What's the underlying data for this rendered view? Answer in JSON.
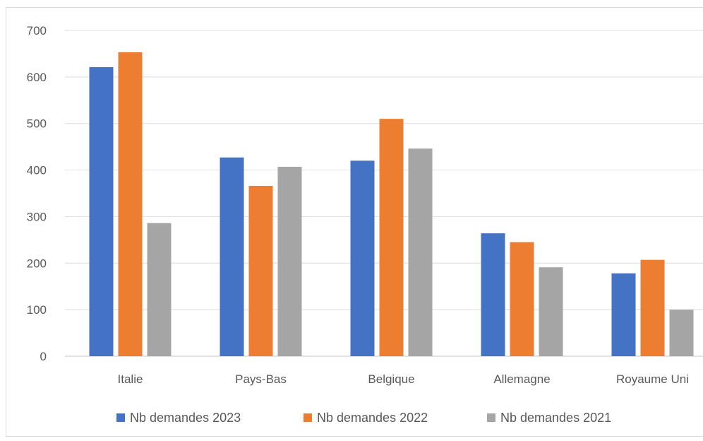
{
  "chart_data": {
    "type": "bar",
    "categories": [
      "Italie",
      "Pays-Bas",
      "Belgique",
      "Allemagne",
      "Royaume Uni"
    ],
    "series": [
      {
        "name": "Nb demandes 2023",
        "values": [
          621,
          427,
          420,
          264,
          178
        ],
        "color": "#4472C4"
      },
      {
        "name": "Nb demandes 2022",
        "values": [
          653,
          366,
          510,
          245,
          207
        ],
        "color": "#ED7D31"
      },
      {
        "name": "Nb demandes 2021",
        "values": [
          286,
          407,
          446,
          191,
          100
        ],
        "color": "#A5A5A5"
      }
    ],
    "title": "",
    "xlabel": "",
    "ylabel": "",
    "ylim": [
      0,
      700
    ],
    "yticks": [
      0,
      100,
      200,
      300,
      400,
      500,
      600,
      700
    ],
    "grid": true,
    "legend": "bottom"
  }
}
